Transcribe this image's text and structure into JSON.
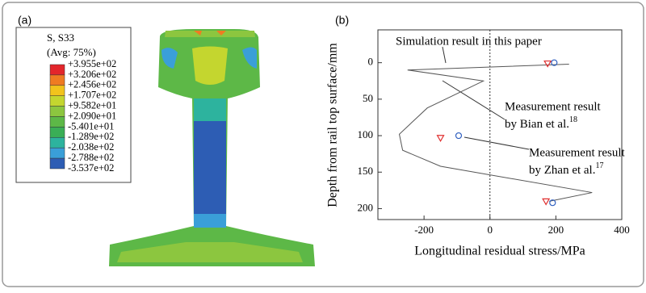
{
  "chart_data": [
    {
      "type": "contour",
      "label": "(a)",
      "legend_title": "S, S33",
      "legend_subtitle": "(Avg: 75%)",
      "legend_levels": [
        {
          "value": 395.5,
          "label": "+3.955e+02"
        },
        {
          "value": 320.6,
          "label": "+3.206e+02"
        },
        {
          "value": 245.6,
          "label": "+2.456e+02"
        },
        {
          "value": 170.7,
          "label": "+1.707e+02"
        },
        {
          "value": 95.82,
          "label": "+9.582e+01"
        },
        {
          "value": 20.9,
          "label": "+2.090e+01"
        },
        {
          "value": -54.01,
          "label": "-5.401e+01"
        },
        {
          "value": -128.9,
          "label": "-1.289e+02"
        },
        {
          "value": -203.8,
          "label": "-2.038e+02"
        },
        {
          "value": -278.8,
          "label": "-2.788e+02"
        },
        {
          "value": -353.7,
          "label": "-3.537e+02"
        }
      ],
      "colors": [
        "#e3262b",
        "#ef7b22",
        "#f2c31c",
        "#c4d62f",
        "#8cc63f",
        "#5db847",
        "#3aae56",
        "#2db39e",
        "#3a9fd8",
        "#2d5db4"
      ]
    },
    {
      "type": "line",
      "label": "(b)",
      "xlabel": "Longitudinal residual stress/MPa",
      "ylabel": "Depth from rail top surface/mm",
      "xlim": [
        -340,
        400
      ],
      "ylim": [
        -45,
        215
      ],
      "y_inverted": true,
      "xticks": [
        -200,
        0,
        200,
        400
      ],
      "yticks": [
        0,
        50,
        100,
        150,
        200
      ],
      "reference_x": 0,
      "series": [
        {
          "name": "Simulation result in this paper",
          "color": "#555555",
          "marker": "none",
          "x": [
            240,
            -250,
            -20,
            -190,
            -275,
            -265,
            -150,
            310,
            180
          ],
          "values": [
            2,
            10,
            25,
            62,
            98,
            120,
            142,
            178,
            190
          ]
        },
        {
          "name": "Measurement result",
          "name_line2": "by Bian et al.",
          "name_sup": "18",
          "color": "#e03030",
          "marker": "triangle",
          "x": [
            175,
            -150,
            170
          ],
          "values": [
            1,
            103,
            190
          ]
        },
        {
          "name": "Measurement result",
          "name_line2": "by Zhan et al.",
          "name_sup": "17",
          "color": "#3060c0",
          "marker": "circle",
          "x": [
            195,
            -95,
            190
          ],
          "values": [
            0,
            100,
            192
          ]
        }
      ]
    }
  ]
}
